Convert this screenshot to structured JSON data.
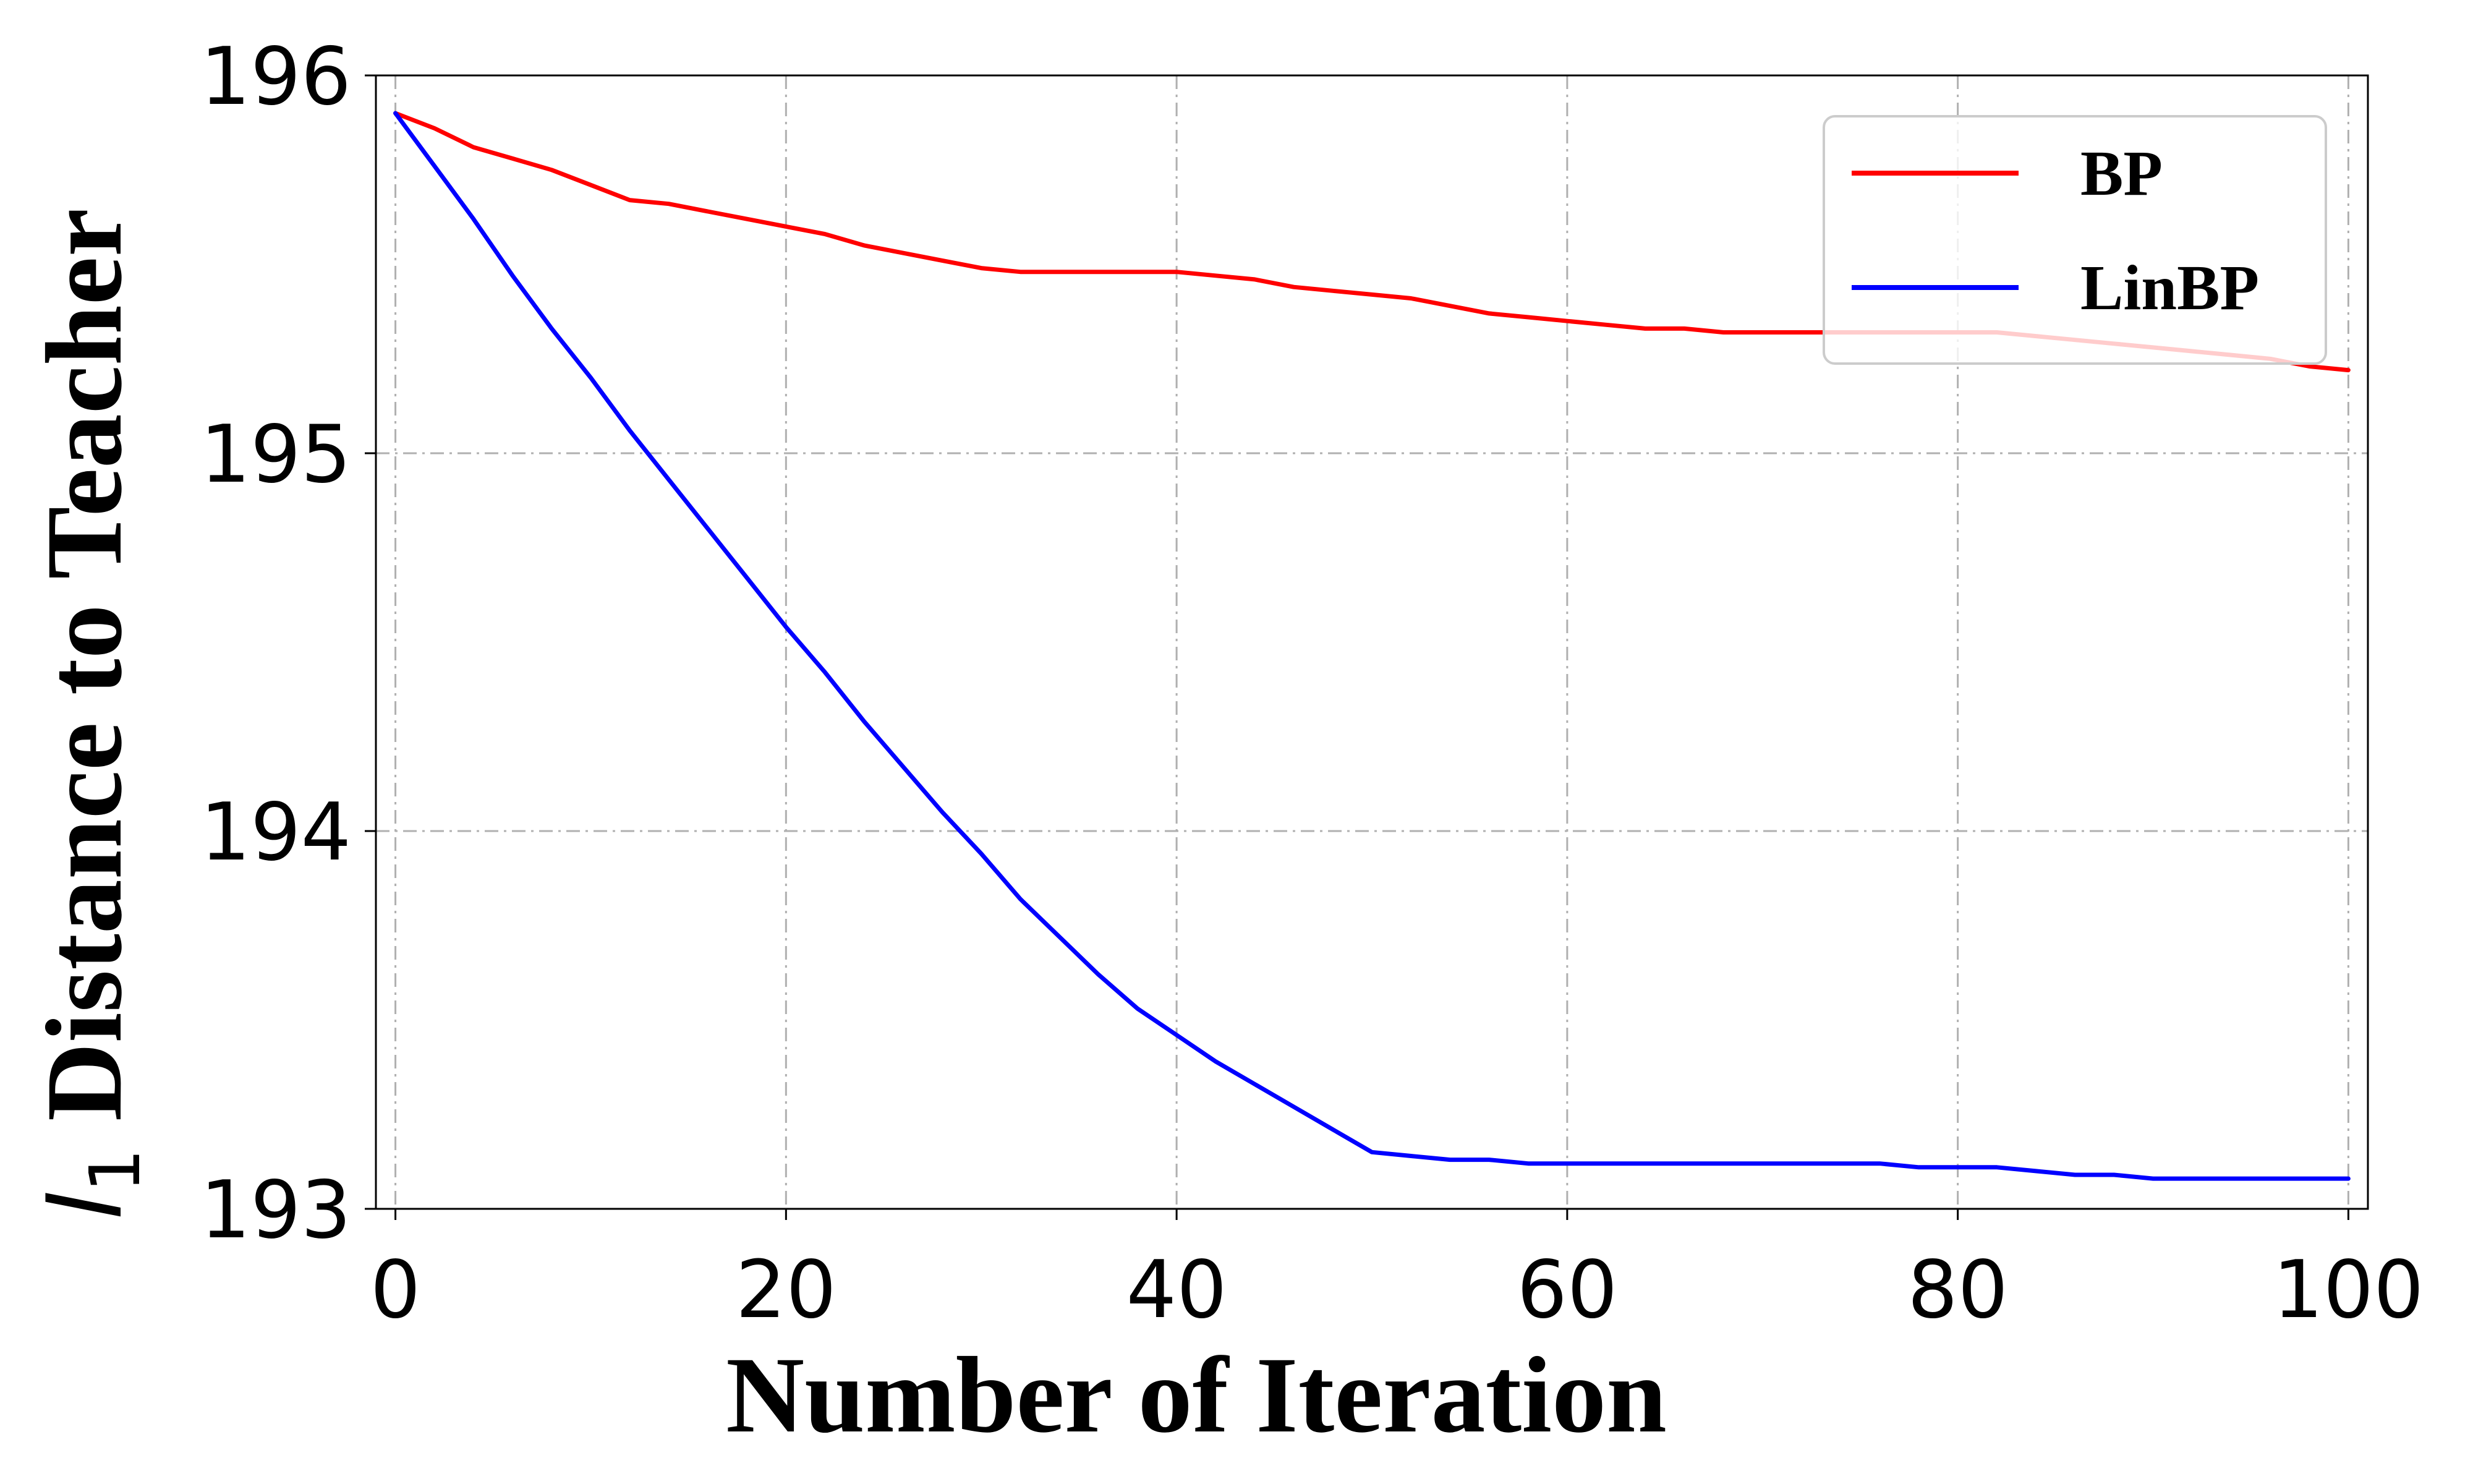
{
  "chart_data": {
    "type": "line",
    "xlabel": "Number of Iteration",
    "ylabel_italic": "l",
    "ylabel_sub": "1",
    "ylabel_rest": " Distance to Teacher",
    "xlim": [
      -1,
      101
    ],
    "ylim": [
      193,
      196
    ],
    "xticks": [
      0,
      20,
      40,
      60,
      80,
      100
    ],
    "yticks": [
      193,
      194,
      195,
      196
    ],
    "xtick_labels": [
      "0",
      "20",
      "40",
      "60",
      "80",
      "100"
    ],
    "ytick_labels": [
      "193",
      "194",
      "195",
      "196"
    ],
    "grid": true,
    "legend_position": "top-right",
    "series": [
      {
        "name": "BP",
        "color": "#ff0000",
        "x": [
          0,
          2,
          4,
          6,
          8,
          10,
          12,
          14,
          16,
          18,
          20,
          22,
          24,
          26,
          28,
          30,
          32,
          34,
          36,
          38,
          40,
          42,
          44,
          46,
          48,
          50,
          52,
          54,
          56,
          58,
          60,
          62,
          64,
          66,
          68,
          70,
          72,
          74,
          76,
          78,
          80,
          82,
          84,
          86,
          88,
          90,
          92,
          94,
          96,
          98,
          100
        ],
        "y": [
          195.9,
          195.86,
          195.81,
          195.78,
          195.75,
          195.71,
          195.67,
          195.66,
          195.64,
          195.62,
          195.6,
          195.58,
          195.55,
          195.53,
          195.51,
          195.49,
          195.48,
          195.48,
          195.48,
          195.48,
          195.48,
          195.47,
          195.46,
          195.44,
          195.43,
          195.42,
          195.41,
          195.39,
          195.37,
          195.36,
          195.35,
          195.34,
          195.33,
          195.33,
          195.32,
          195.32,
          195.32,
          195.32,
          195.32,
          195.32,
          195.32,
          195.32,
          195.31,
          195.3,
          195.29,
          195.28,
          195.27,
          195.26,
          195.25,
          195.23,
          195.22
        ]
      },
      {
        "name": "LinBP",
        "color": "#0000ff",
        "x": [
          0,
          2,
          4,
          6,
          8,
          10,
          12,
          14,
          16,
          18,
          20,
          22,
          24,
          26,
          28,
          30,
          32,
          34,
          36,
          38,
          40,
          42,
          44,
          46,
          48,
          50,
          52,
          54,
          56,
          58,
          60,
          62,
          64,
          66,
          68,
          70,
          72,
          74,
          76,
          78,
          80,
          82,
          84,
          86,
          88,
          90,
          92,
          94,
          96,
          98,
          100
        ],
        "y": [
          195.9,
          195.76,
          195.62,
          195.47,
          195.33,
          195.2,
          195.06,
          194.93,
          194.8,
          194.67,
          194.54,
          194.42,
          194.29,
          194.17,
          194.05,
          193.94,
          193.82,
          193.72,
          193.62,
          193.53,
          193.46,
          193.39,
          193.33,
          193.27,
          193.21,
          193.15,
          193.14,
          193.13,
          193.13,
          193.12,
          193.12,
          193.12,
          193.12,
          193.12,
          193.12,
          193.12,
          193.12,
          193.12,
          193.12,
          193.11,
          193.11,
          193.11,
          193.1,
          193.09,
          193.09,
          193.08,
          193.08,
          193.08,
          193.08,
          193.08,
          193.08
        ]
      }
    ]
  }
}
